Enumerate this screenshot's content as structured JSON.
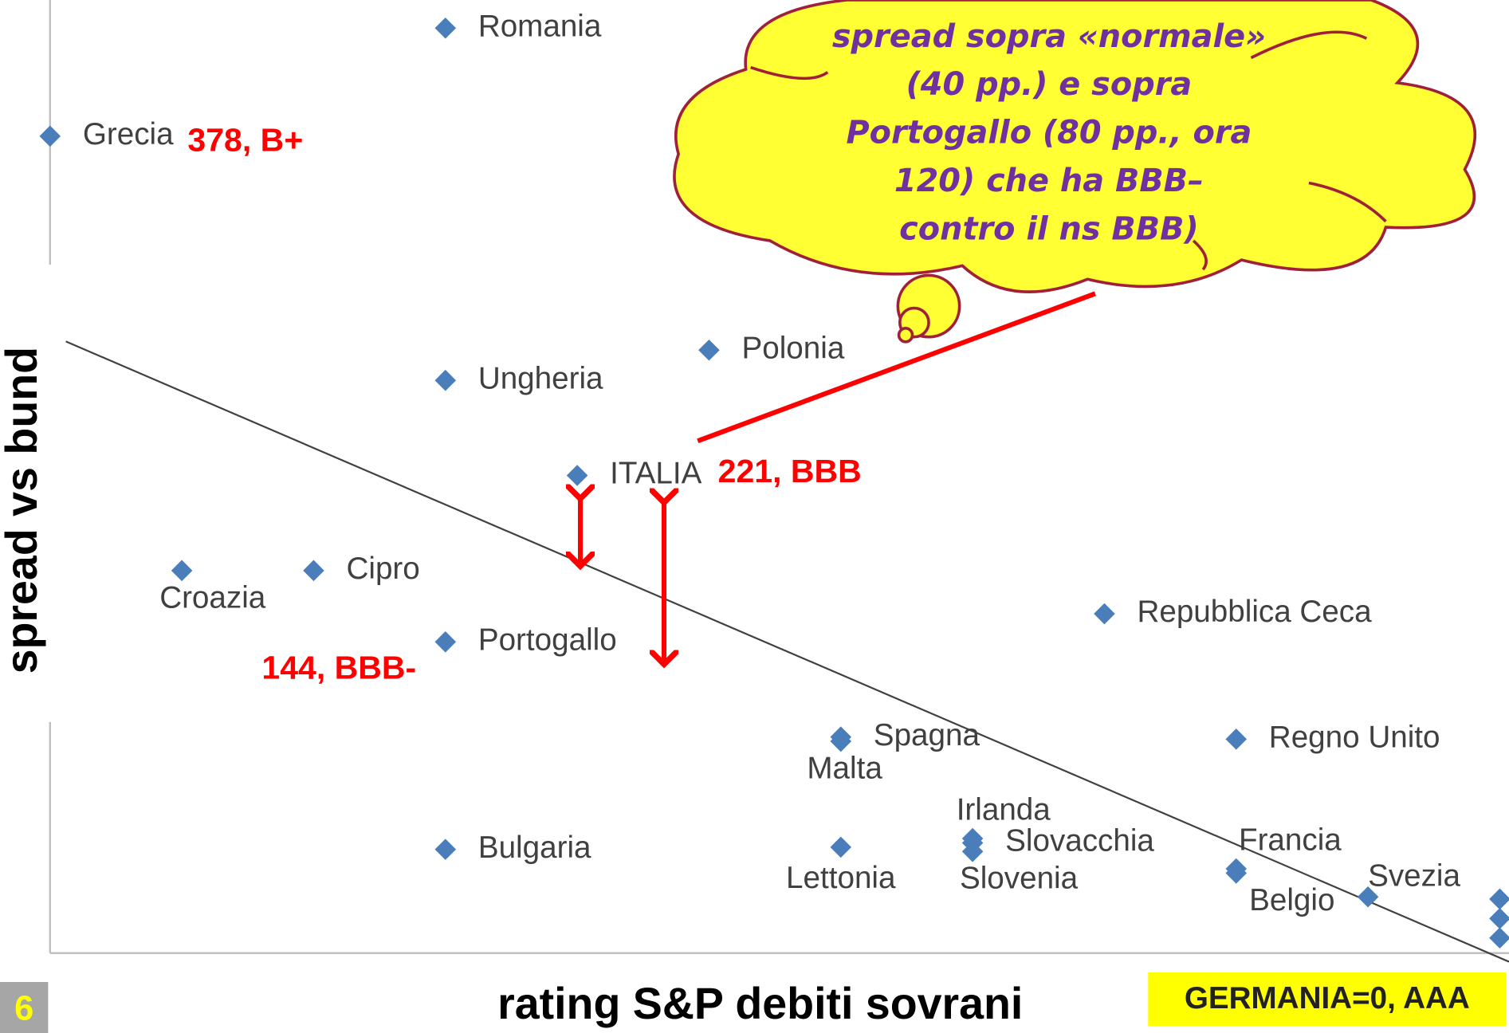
{
  "chart_data": {
    "type": "scatter",
    "x_label": "rating S&P debiti sovrani",
    "y_label": "spread vs bund",
    "color": "#4a7ebb",
    "labels": [
      "Romania",
      "Grecia",
      "Polonia",
      "Ungheria",
      "ITALIA",
      "Croazia",
      "Cipro",
      "Portogallo",
      "Repubblica Ceca",
      "Spagna",
      "Malta",
      "Regno Unito",
      "Bulgaria",
      "Lettonia",
      "Irlanda",
      "Slovacchia",
      "Slovenia",
      "Francia",
      "Belgio",
      "Svezia",
      null,
      null,
      null
    ],
    "x": [
      3,
      0,
      5,
      3,
      4,
      1,
      2,
      3,
      8,
      6,
      6,
      9,
      3,
      6,
      7,
      7,
      7,
      9,
      9,
      10,
      11,
      11,
      11
    ],
    "values": [
      428,
      378,
      279,
      265,
      221,
      177,
      177,
      144,
      157,
      100,
      98,
      99,
      48,
      49,
      53,
      51,
      47,
      39,
      37,
      26,
      25,
      16,
      7
    ],
    "xlim": [
      0,
      11.07
    ],
    "ylim": [
      0,
      441
    ],
    "trendline": {
      "x": [
        0.12,
        11.07
      ],
      "y": [
        283,
        -4
      ]
    },
    "annotations": {
      "grecia": "378, B+",
      "italia": "221, BBB",
      "portogallo": "144, BBB-",
      "germania": "GERMANIA=0, AAA",
      "cloud": [
        "spread sopra «normale»",
        "(40 pp.) e sopra",
        "Portogallo (80 pp., ora",
        "120) che ha BBB–",
        "contro il ns BBB)"
      ]
    },
    "page_number": "6"
  }
}
